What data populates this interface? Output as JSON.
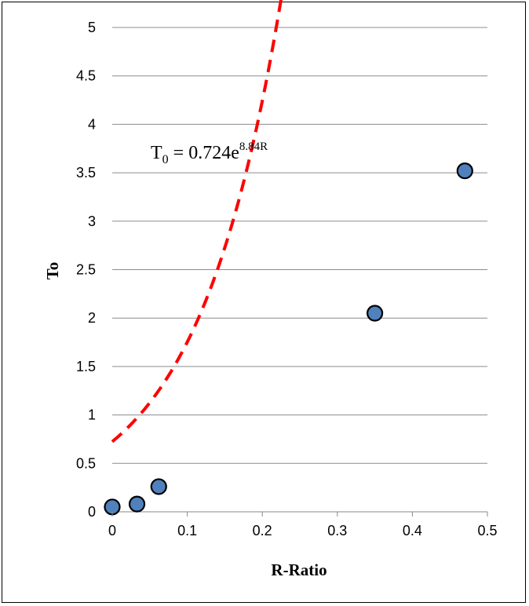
{
  "chart_data": {
    "type": "scatter",
    "title": "",
    "xlabel": "R-Ratio",
    "ylabel": "To",
    "xlim": [
      0,
      0.5
    ],
    "ylim": [
      0,
      5
    ],
    "x_ticks": [
      "0",
      "0.1",
      "0.2",
      "0.3",
      "0.4",
      "0.5"
    ],
    "y_ticks": [
      "0",
      "0.5",
      "1",
      "1.5",
      "2",
      "2.5",
      "3",
      "3.5",
      "4",
      "4.5",
      "5"
    ],
    "grid": "horizontal",
    "series": [
      {
        "type": "scatter",
        "x": [
          0.0,
          0.033,
          0.062,
          0.35,
          0.47
        ],
        "y": [
          0.05,
          0.08,
          0.26,
          2.05,
          3.52
        ],
        "color": "#4f81bd"
      }
    ],
    "trendline": {
      "type": "exponential",
      "a": 0.724,
      "b": 8.84,
      "x_range": [
        0.0,
        0.47
      ],
      "color": "#ff0000",
      "style": "dashed"
    },
    "equation": {
      "base": "T",
      "subscript": "0",
      "middle": " = 0.724e",
      "superscript": "8.84R"
    }
  }
}
